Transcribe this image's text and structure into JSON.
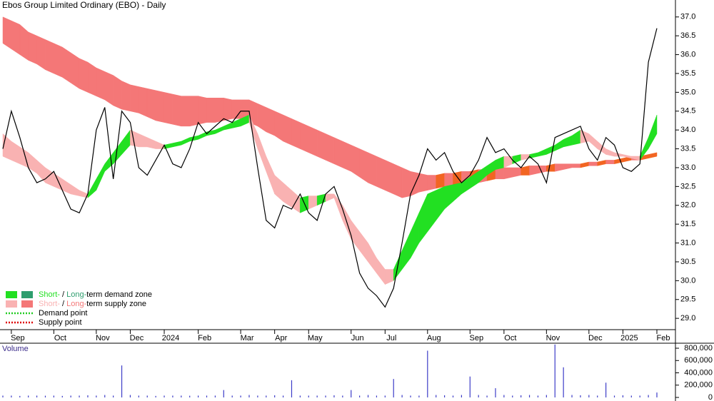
{
  "chart_data": {
    "type": "zones",
    "title": "Ebos Group Limited Ordinary (EBO) - Daily",
    "categories": [
      null,
      "Sep",
      null,
      null,
      null,
      null,
      "Oct",
      null,
      null,
      null,
      null,
      "Nov",
      null,
      null,
      null,
      "Dec",
      null,
      null,
      null,
      "2024",
      null,
      null,
      null,
      "Feb",
      null,
      null,
      null,
      null,
      "Mar",
      null,
      null,
      null,
      "Apr",
      null,
      null,
      null,
      "May",
      null,
      null,
      null,
      null,
      "Jun",
      null,
      null,
      null,
      "Jul",
      null,
      null,
      null,
      null,
      "Aug",
      null,
      null,
      null,
      null,
      "Sep",
      null,
      null,
      null,
      "Oct",
      null,
      null,
      null,
      null,
      "Nov",
      null,
      null,
      null,
      null,
      "Dec",
      null,
      null,
      null,
      "2025",
      null,
      null,
      null,
      "Feb"
    ],
    "close": {
      "color": "#000000",
      "values": [
        33.5,
        34.5,
        33.8,
        33.0,
        32.6,
        32.7,
        32.9,
        32.4,
        31.9,
        31.8,
        32.3,
        34.0,
        34.6,
        32.7,
        34.5,
        34.2,
        33.0,
        32.8,
        33.2,
        33.6,
        33.1,
        33.0,
        33.5,
        34.2,
        33.9,
        34.1,
        34.3,
        34.2,
        34.5,
        34.5,
        33.0,
        31.6,
        31.4,
        32.0,
        31.9,
        32.3,
        31.8,
        31.6,
        32.3,
        32.5,
        31.9,
        31.2,
        30.2,
        29.8,
        29.6,
        29.3,
        29.8,
        31.0,
        32.3,
        32.8,
        33.5,
        33.2,
        33.4,
        32.9,
        32.6,
        32.8,
        33.2,
        33.8,
        33.4,
        33.5,
        33.2,
        33.0,
        33.3,
        33.1,
        32.6,
        33.8,
        33.9,
        34.0,
        34.1,
        33.5,
        33.2,
        33.8,
        33.6,
        33.0,
        32.9,
        33.1,
        35.8,
        36.7
      ]
    },
    "long_zone": {
      "color": "#f47777",
      "rising_color": "#f26522",
      "upper": [
        37.0,
        36.9,
        36.8,
        36.6,
        36.5,
        36.4,
        36.3,
        36.2,
        36.05,
        35.9,
        35.8,
        35.65,
        35.55,
        35.45,
        35.3,
        35.2,
        35.15,
        35.1,
        35.05,
        35.0,
        34.95,
        34.9,
        34.9,
        34.9,
        34.85,
        34.85,
        34.85,
        34.8,
        34.8,
        34.8,
        34.7,
        34.6,
        34.5,
        34.4,
        34.3,
        34.2,
        34.1,
        34.0,
        33.9,
        33.8,
        33.7,
        33.6,
        33.5,
        33.4,
        33.3,
        33.2,
        33.1,
        33.0,
        32.9,
        32.85,
        32.8,
        32.8,
        32.85,
        32.85,
        32.9,
        32.9,
        32.95,
        32.95,
        33.0,
        33.0,
        33.0,
        33.0,
        33.05,
        33.05,
        33.05,
        33.1,
        33.1,
        33.1,
        33.1,
        33.15,
        33.15,
        33.2,
        33.2,
        33.25,
        33.3,
        33.3,
        33.35,
        33.4
      ],
      "lower": [
        36.3,
        36.15,
        36.0,
        35.85,
        35.75,
        35.6,
        35.5,
        35.4,
        35.25,
        35.1,
        35.0,
        34.9,
        34.8,
        34.65,
        34.55,
        34.5,
        34.45,
        34.35,
        34.25,
        34.2,
        34.15,
        34.1,
        34.1,
        34.15,
        34.2,
        34.2,
        34.25,
        34.3,
        34.3,
        34.2,
        34.1,
        33.95,
        33.85,
        33.7,
        33.6,
        33.5,
        33.4,
        33.3,
        33.2,
        33.1,
        33.0,
        32.9,
        32.75,
        32.6,
        32.5,
        32.4,
        32.3,
        32.2,
        32.25,
        32.35,
        32.4,
        32.45,
        32.5,
        32.5,
        32.55,
        32.6,
        32.6,
        32.65,
        32.7,
        32.7,
        32.75,
        32.8,
        32.8,
        32.85,
        32.9,
        32.9,
        32.95,
        33.0,
        33.0,
        33.05,
        33.05,
        33.1,
        33.1,
        33.15,
        33.2,
        33.2,
        33.25,
        33.3
      ]
    },
    "short_zone": {
      "color": "#f9b2b2",
      "rising_color": "#22e022",
      "upper": [
        33.9,
        33.7,
        33.55,
        33.4,
        33.2,
        33.0,
        32.85,
        32.7,
        32.55,
        32.4,
        32.3,
        32.7,
        33.1,
        33.4,
        33.7,
        34.0,
        33.9,
        33.8,
        33.7,
        33.6,
        33.65,
        33.7,
        33.8,
        33.85,
        33.95,
        34.0,
        34.1,
        34.2,
        34.3,
        34.4,
        33.9,
        33.3,
        32.8,
        32.6,
        32.4,
        32.2,
        32.25,
        32.25,
        32.3,
        32.3,
        32.0,
        31.6,
        31.3,
        31.0,
        30.6,
        30.3,
        30.3,
        30.8,
        31.3,
        31.8,
        32.3,
        32.4,
        32.5,
        32.55,
        32.6,
        32.75,
        32.9,
        33.05,
        33.2,
        33.3,
        33.3,
        33.35,
        33.35,
        33.4,
        33.5,
        33.6,
        33.75,
        33.85,
        34.0,
        33.9,
        33.7,
        33.5,
        33.4,
        33.35,
        33.3,
        33.3,
        33.8,
        34.4
      ],
      "lower": [
        33.3,
        33.2,
        33.1,
        33.0,
        32.85,
        32.6,
        32.5,
        32.4,
        32.3,
        32.25,
        32.2,
        32.4,
        32.9,
        33.1,
        33.35,
        33.6,
        33.55,
        33.55,
        33.5,
        33.5,
        33.55,
        33.6,
        33.7,
        33.75,
        33.85,
        33.9,
        34.0,
        34.05,
        34.1,
        34.2,
        33.5,
        32.9,
        32.3,
        32.1,
        31.95,
        31.8,
        31.9,
        32.0,
        32.1,
        32.2,
        31.6,
        31.1,
        30.8,
        30.5,
        30.2,
        29.9,
        30.0,
        30.3,
        30.6,
        31.0,
        31.3,
        31.6,
        31.9,
        32.1,
        32.3,
        32.45,
        32.6,
        32.8,
        32.95,
        33.0,
        33.1,
        33.2,
        33.25,
        33.3,
        33.35,
        33.45,
        33.55,
        33.6,
        33.65,
        33.7,
        33.5,
        33.35,
        33.3,
        33.3,
        33.25,
        33.2,
        33.5,
        33.9
      ]
    },
    "ylim": [
      28.7,
      37.45
    ],
    "yticks": [
      {
        "value": 29,
        "label": "29.0"
      },
      29.5,
      {
        "value": 30,
        "label": "30.0"
      },
      30.5,
      {
        "value": 31,
        "label": "31.0"
      },
      31.5,
      {
        "value": 32,
        "label": "32.0"
      },
      32.5,
      {
        "value": 33,
        "label": "33.0"
      },
      33.5,
      {
        "value": 34,
        "label": "34.0"
      },
      34.5,
      {
        "value": 35,
        "label": "35.0"
      },
      35.5,
      {
        "value": 36,
        "label": "36.0"
      },
      36.5,
      {
        "value": 37,
        "label": "37.0"
      }
    ],
    "volume": {
      "label": "Volume",
      "color": "#3d3dc8",
      "values": [
        30000,
        30000,
        25000,
        30000,
        30000,
        28000,
        30000,
        25000,
        30000,
        30000,
        35000,
        30000,
        40000,
        30000,
        520000,
        40000,
        30000,
        30000,
        25000,
        30000,
        30000,
        30000,
        28000,
        30000,
        30000,
        30000,
        120000,
        30000,
        30000,
        40000,
        30000,
        30000,
        35000,
        30000,
        280000,
        30000,
        30000,
        30000,
        30000,
        35000,
        30000,
        120000,
        30000,
        40000,
        30000,
        30000,
        300000,
        40000,
        30000,
        30000,
        760000,
        40000,
        35000,
        30000,
        40000,
        340000,
        40000,
        30000,
        150000,
        40000,
        30000,
        35000,
        40000,
        30000,
        40000,
        860000,
        490000,
        40000,
        35000,
        40000,
        30000,
        240000,
        30000,
        35000,
        30000,
        30000,
        40000,
        80000
      ],
      "ylim": [
        0,
        870000
      ],
      "yticks": [
        0,
        {
          "value": 200000,
          "label": "200,000"
        },
        {
          "value": 400000,
          "label": "400,000"
        },
        {
          "value": 600000,
          "label": "600,000"
        },
        {
          "value": 800000,
          "label": "800,000"
        }
      ]
    },
    "legend": [
      {
        "parts": [
          "Short-",
          " / ",
          "Long-",
          "term demand zone"
        ],
        "colors": [
          "#22e022",
          "#2e9e6e"
        ]
      },
      {
        "parts": [
          "Short-",
          " / ",
          "Long-",
          "term supply zone"
        ],
        "colors": [
          "#f9b2b2",
          "#f47777"
        ]
      },
      {
        "parts": [
          "Demand point"
        ],
        "colors": [
          "#22cc22"
        ]
      },
      {
        "parts": [
          "Supply point"
        ],
        "colors": [
          "#dd0000"
        ]
      }
    ]
  }
}
